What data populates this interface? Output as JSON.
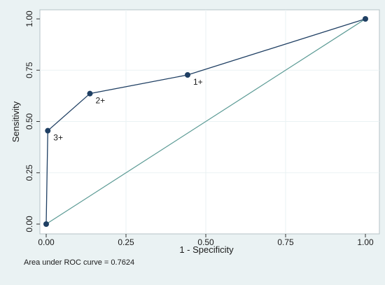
{
  "chart_data": {
    "type": "line",
    "xlabel": "1 - Specificity",
    "ylabel": "Sensitivity",
    "xlim": [
      0,
      1
    ],
    "ylim": [
      0,
      1
    ],
    "xticks": [
      "0.00",
      "0.25",
      "0.50",
      "0.75",
      "1.00"
    ],
    "yticks": [
      "0.00",
      "0.25",
      "0.50",
      "0.75",
      "1.00"
    ],
    "grid": true,
    "series": [
      {
        "color": "#1f3f63",
        "points": [
          {
            "x": 0.0,
            "y": 0.0,
            "label": ""
          },
          {
            "x": 0.005,
            "y": 0.455,
            "label": "3+"
          },
          {
            "x": 0.137,
            "y": 0.636,
            "label": "2+"
          },
          {
            "x": 0.443,
            "y": 0.727,
            "label": "1+"
          },
          {
            "x": 1.0,
            "y": 1.0,
            "label": ""
          }
        ]
      }
    ],
    "reference_line": {
      "x": [
        0,
        1
      ],
      "y": [
        0,
        1
      ],
      "color": "#5a9a94"
    },
    "annotation": "Area under ROC curve = 0.7624"
  }
}
